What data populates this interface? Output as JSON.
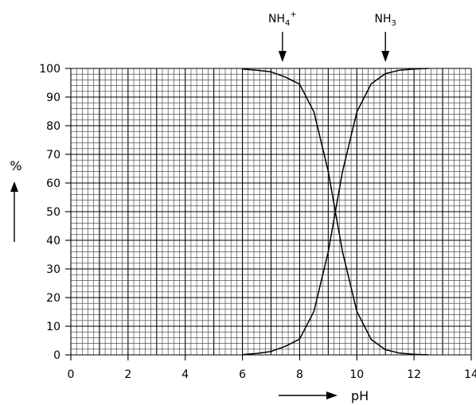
{
  "chart_data": {
    "type": "line",
    "title": "",
    "xlabel": "pH",
    "ylabel": "%",
    "xlim": [
      0,
      14
    ],
    "ylim": [
      0,
      100
    ],
    "x_ticks": [
      0,
      2,
      4,
      6,
      8,
      10,
      12,
      14
    ],
    "y_ticks": [
      0,
      10,
      20,
      30,
      40,
      50,
      60,
      70,
      80,
      90,
      100
    ],
    "grid": true,
    "grid_minor_x_step": 0.2,
    "grid_minor_y_step": 2,
    "series": [
      {
        "name": "NH4+",
        "x": [
          6.0,
          6.5,
          7.0,
          7.5,
          8.0,
          8.5,
          9.0,
          9.25,
          9.5,
          10.0,
          10.5,
          11.0,
          11.5,
          12.0,
          12.5
        ],
        "y": [
          99.8,
          99.4,
          98.8,
          97.0,
          94.5,
          84.8,
          64.0,
          50.0,
          36.0,
          15.2,
          5.4,
          1.8,
          0.6,
          0.2,
          0.0
        ]
      },
      {
        "name": "NH3",
        "x": [
          6.0,
          6.5,
          7.0,
          7.5,
          8.0,
          8.5,
          9.0,
          9.25,
          9.5,
          10.0,
          10.5,
          11.0,
          11.5,
          12.0,
          12.5
        ],
        "y": [
          0.1,
          0.5,
          1.2,
          3.0,
          5.5,
          15.2,
          36.0,
          50.0,
          64.0,
          84.8,
          94.6,
          98.2,
          99.4,
          99.8,
          100.0
        ]
      }
    ],
    "annotations": [
      {
        "text_main": "NH",
        "sub": "4",
        "sup": "+",
        "series": "NH4+",
        "arrow_x": 7.4
      },
      {
        "text_main": "NH",
        "sub": "3",
        "sup": "",
        "series": "NH3",
        "arrow_x": 11.0
      }
    ]
  }
}
